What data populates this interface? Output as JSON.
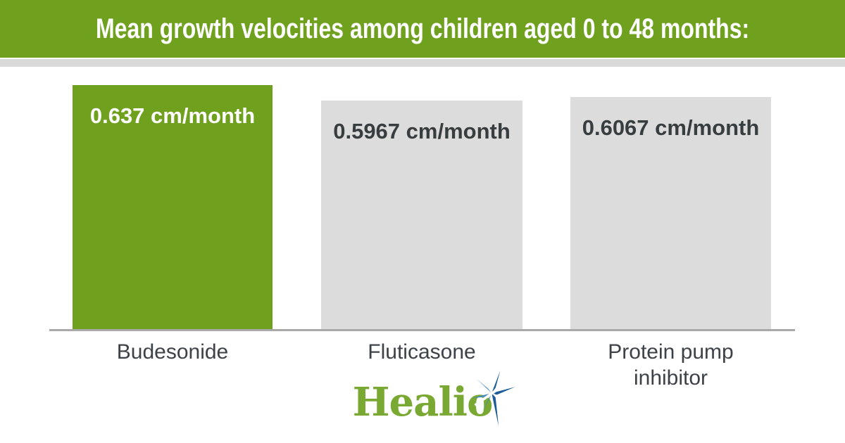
{
  "banner": {
    "title": "Mean growth velocities among children aged 0 to 48 months:"
  },
  "chart_data": {
    "type": "bar",
    "title": "Mean growth velocities among children aged 0 to 48 months:",
    "categories": [
      "Budesonide",
      "Fluticasone",
      "Protein pump inhibitor"
    ],
    "values": [
      0.637,
      0.5967,
      0.6067
    ],
    "value_labels": [
      "0.637 cm/month",
      "0.5967 cm/month",
      "0.6067 cm/month"
    ],
    "unit": "cm/month",
    "xlabel": "",
    "ylabel": "",
    "ylim": [
      0,
      0.637
    ],
    "bar_colors": [
      "#6FA01E",
      "#DCDCDC",
      "#DCDCDC"
    ],
    "grid": false,
    "legend": "none"
  },
  "footer": {
    "logo_text": "Healio",
    "logo_star_icon": "starburst-icon"
  },
  "colors": {
    "banner_green": "#6FA01E",
    "bar_green": "#6FA01E",
    "bar_gray": "#DCDCDC",
    "shadow_strip_gray": "#D9D9D9",
    "axis_gray": "#A9A9A9",
    "category_text": "#3C4247",
    "value_text_dark": "#383D40",
    "value_text_light": "#FFFFFF",
    "logo_green": "#7AA933",
    "logo_blue_dark": "#1E5C99",
    "logo_blue_light": "#4189C2"
  }
}
